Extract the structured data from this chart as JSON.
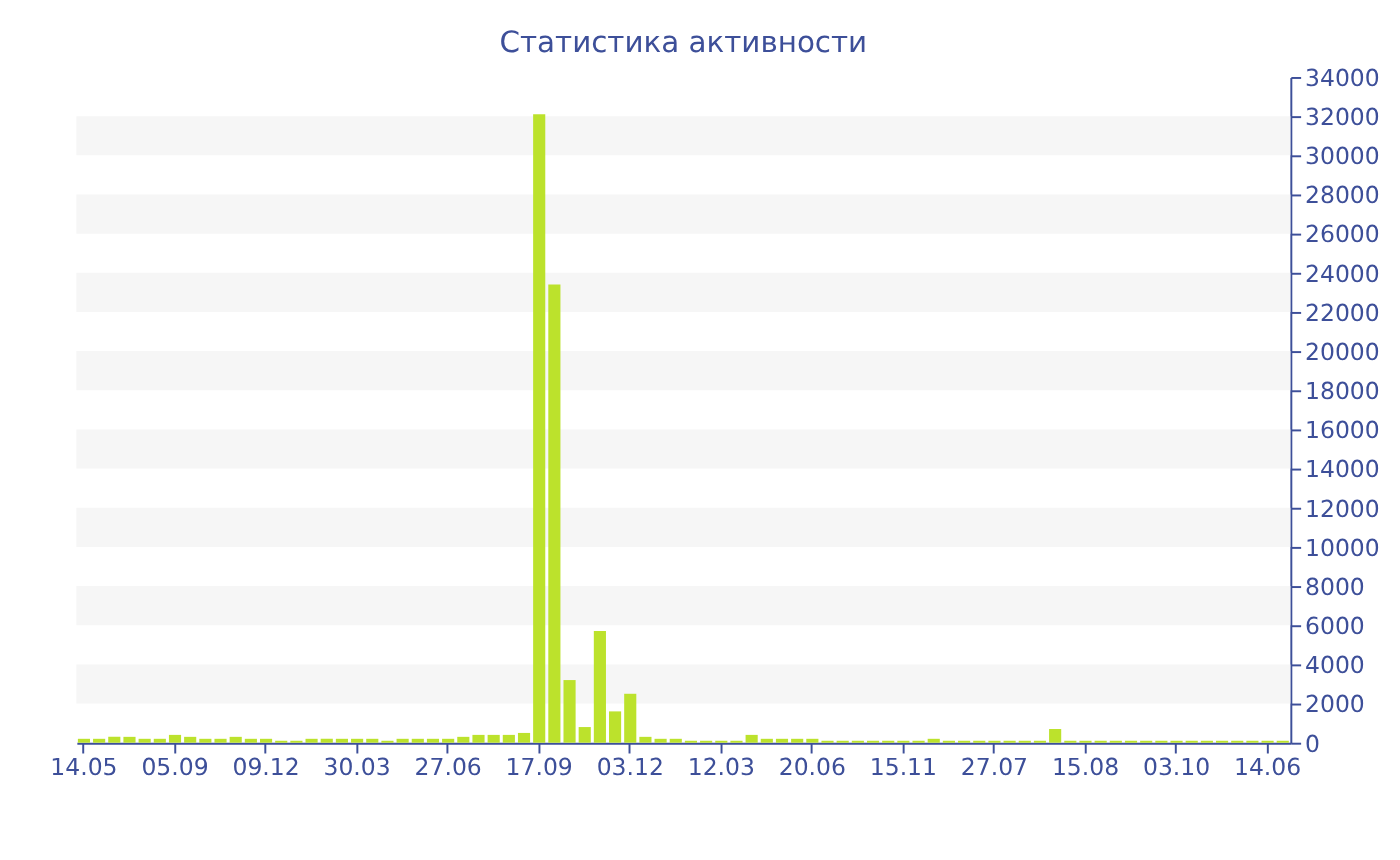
{
  "chart_data": {
    "type": "bar",
    "title": "Статистика активности",
    "categories": [
      "14.05",
      null,
      null,
      null,
      null,
      null,
      "05.09",
      null,
      null,
      null,
      null,
      null,
      "09.12",
      null,
      null,
      null,
      null,
      null,
      "30.03",
      null,
      null,
      null,
      null,
      null,
      "27.06",
      null,
      null,
      null,
      null,
      null,
      "17.09",
      null,
      null,
      null,
      null,
      null,
      "03.12",
      null,
      null,
      null,
      null,
      null,
      "12.03",
      null,
      null,
      null,
      null,
      null,
      "20.06",
      null,
      null,
      null,
      null,
      null,
      "15.11",
      null,
      null,
      null,
      null,
      null,
      "27.07",
      null,
      null,
      null,
      null,
      null,
      "15.08",
      null,
      null,
      null,
      null,
      null,
      "03.10",
      null,
      null,
      null,
      null,
      null,
      "14.06",
      null
    ],
    "values": [
      200,
      200,
      300,
      300,
      200,
      200,
      400,
      300,
      200,
      200,
      300,
      200,
      200,
      100,
      100,
      200,
      200,
      200,
      200,
      200,
      100,
      200,
      200,
      200,
      200,
      300,
      400,
      400,
      400,
      500,
      32100,
      23400,
      3200,
      800,
      5700,
      1600,
      2500,
      300,
      200,
      200,
      100,
      100,
      100,
      100,
      400,
      200,
      200,
      200,
      200,
      100,
      100,
      100,
      100,
      100,
      100,
      100,
      200,
      100,
      100,
      100,
      100,
      100,
      100,
      100,
      700,
      100,
      100,
      100,
      100,
      100,
      100,
      100,
      100,
      100,
      100,
      100,
      100,
      100,
      100,
      100
    ],
    "color": "#bce22c",
    "ylim": [
      0,
      34000
    ],
    "yticks": [
      0,
      2000,
      4000,
      6000,
      8000,
      10000,
      12000,
      14000,
      16000,
      18000,
      20000,
      22000,
      24000,
      26000,
      28000,
      30000,
      32000,
      34000
    ],
    "bands": [
      {
        "axis": "y",
        "from": 2000,
        "to": 4000,
        "color": "#f6f6f6"
      },
      {
        "axis": "y",
        "from": 6000,
        "to": 8000,
        "color": "#f6f6f6"
      },
      {
        "axis": "y",
        "from": 10000,
        "to": 12000,
        "color": "#f6f6f6"
      },
      {
        "axis": "y",
        "from": 14000,
        "to": 16000,
        "color": "#f6f6f6"
      },
      {
        "axis": "y",
        "from": 18000,
        "to": 20000,
        "color": "#f6f6f6"
      },
      {
        "axis": "y",
        "from": 22000,
        "to": 24000,
        "color": "#f6f6f6"
      },
      {
        "axis": "y",
        "from": 26000,
        "to": 28000,
        "color": "#f6f6f6"
      },
      {
        "axis": "y",
        "from": 30000,
        "to": 32000,
        "color": "#f6f6f6"
      }
    ]
  }
}
